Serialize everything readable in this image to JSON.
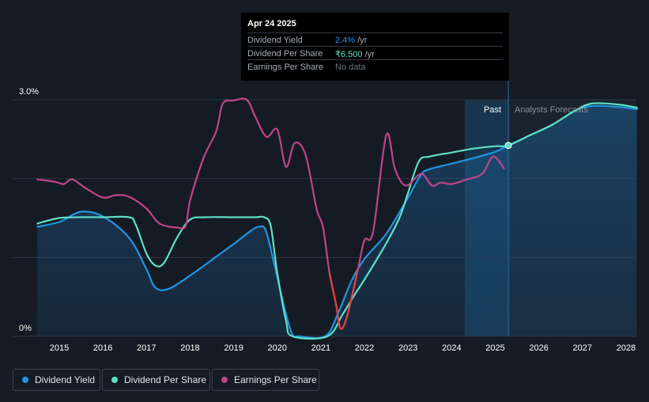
{
  "tooltip": {
    "date": "Apr 24 2025",
    "rows": [
      {
        "label": "Dividend Yield",
        "value": "2.4%",
        "unit": "/yr",
        "color": "#2394df"
      },
      {
        "label": "Dividend Per Share",
        "value": "₹6.500",
        "unit": "/yr",
        "color": "#5ce0c6"
      },
      {
        "label": "Earnings Per Share",
        "value": "No data",
        "unit": "",
        "color": "#6f7680"
      }
    ]
  },
  "labels": {
    "past": "Past",
    "forecast": "Analysts Forecasts"
  },
  "legend": [
    {
      "label": "Dividend Yield",
      "color": "#2394df"
    },
    {
      "label": "Dividend Per Share",
      "color": "#5ce0c6"
    },
    {
      "label": "Earnings Per Share",
      "color": "#c0448a"
    }
  ],
  "chart_data": {
    "type": "line",
    "title": "",
    "xlabel": "",
    "ylabel": "",
    "x_ticks": [
      "2015",
      "2016",
      "2017",
      "2018",
      "2019",
      "2020",
      "2021",
      "2022",
      "2023",
      "2024",
      "2025",
      "2026",
      "2027",
      "2028"
    ],
    "y_ticks": [
      "0%",
      "3.0%"
    ],
    "xlim": [
      2014.5,
      2028.25
    ],
    "ylim": [
      0,
      3.0
    ],
    "today": 2025.3,
    "forecast_start": 2024.3,
    "series": [
      {
        "name": "Dividend Yield",
        "color": "#2394df",
        "area": true,
        "points": [
          [
            2014.5,
            1.39
          ],
          [
            2015.0,
            1.45
          ],
          [
            2015.5,
            1.58
          ],
          [
            2016.0,
            1.52
          ],
          [
            2016.6,
            1.25
          ],
          [
            2017.0,
            0.85
          ],
          [
            2017.2,
            0.62
          ],
          [
            2017.5,
            0.6
          ],
          [
            2018.0,
            0.77
          ],
          [
            2018.6,
            1.01
          ],
          [
            2019.0,
            1.17
          ],
          [
            2019.4,
            1.34
          ],
          [
            2019.6,
            1.39
          ],
          [
            2019.75,
            1.32
          ],
          [
            2020.0,
            0.75
          ],
          [
            2020.2,
            0.28
          ],
          [
            2020.35,
            0.02
          ],
          [
            2020.5,
            0.0
          ],
          [
            2021.1,
            0.0
          ],
          [
            2021.4,
            0.3
          ],
          [
            2021.7,
            0.7
          ],
          [
            2022.0,
            0.98
          ],
          [
            2022.5,
            1.3
          ],
          [
            2023.0,
            1.76
          ],
          [
            2023.3,
            2.05
          ],
          [
            2023.5,
            2.12
          ],
          [
            2024.0,
            2.19
          ],
          [
            2024.5,
            2.26
          ],
          [
            2025.0,
            2.34
          ],
          [
            2025.3,
            2.42
          ],
          [
            2025.8,
            2.55
          ],
          [
            2026.3,
            2.68
          ],
          [
            2026.8,
            2.85
          ],
          [
            2027.2,
            2.92
          ],
          [
            2027.8,
            2.91
          ],
          [
            2028.25,
            2.88
          ]
        ]
      },
      {
        "name": "Dividend Per Share",
        "color": "#5ce0c6",
        "area": false,
        "points": [
          [
            2014.5,
            1.43
          ],
          [
            2015.0,
            1.5
          ],
          [
            2015.5,
            1.51
          ],
          [
            2016.0,
            1.51
          ],
          [
            2016.6,
            1.51
          ],
          [
            2016.75,
            1.42
          ],
          [
            2017.0,
            1.05
          ],
          [
            2017.2,
            0.9
          ],
          [
            2017.4,
            0.93
          ],
          [
            2017.7,
            1.25
          ],
          [
            2018.0,
            1.48
          ],
          [
            2018.35,
            1.51
          ],
          [
            2019.0,
            1.51
          ],
          [
            2019.5,
            1.51
          ],
          [
            2019.7,
            1.51
          ],
          [
            2019.85,
            1.4
          ],
          [
            2020.0,
            0.8
          ],
          [
            2020.2,
            0.2
          ],
          [
            2020.35,
            0.0
          ],
          [
            2021.15,
            0.0
          ],
          [
            2021.5,
            0.28
          ],
          [
            2021.8,
            0.55
          ],
          [
            2022.0,
            0.72
          ],
          [
            2022.5,
            1.18
          ],
          [
            2022.8,
            1.5
          ],
          [
            2023.0,
            1.82
          ],
          [
            2023.25,
            2.22
          ],
          [
            2023.5,
            2.28
          ],
          [
            2024.0,
            2.33
          ],
          [
            2024.5,
            2.38
          ],
          [
            2025.0,
            2.41
          ],
          [
            2025.3,
            2.42
          ],
          [
            2025.8,
            2.55
          ],
          [
            2026.3,
            2.68
          ],
          [
            2026.8,
            2.85
          ],
          [
            2027.2,
            2.95
          ],
          [
            2027.8,
            2.94
          ],
          [
            2028.25,
            2.9
          ]
        ]
      },
      {
        "name": "Earnings Per Share",
        "color": "#c0448a",
        "area": false,
        "points": [
          [
            2014.5,
            1.99
          ],
          [
            2014.9,
            1.96
          ],
          [
            2015.1,
            1.93
          ],
          [
            2015.3,
            1.99
          ],
          [
            2015.6,
            1.88
          ],
          [
            2016.0,
            1.76
          ],
          [
            2016.3,
            1.79
          ],
          [
            2016.6,
            1.77
          ],
          [
            2017.0,
            1.62
          ],
          [
            2017.3,
            1.43
          ],
          [
            2017.7,
            1.38
          ],
          [
            2017.9,
            1.4
          ],
          [
            2018.0,
            1.72
          ],
          [
            2018.3,
            2.25
          ],
          [
            2018.6,
            2.6
          ],
          [
            2018.75,
            2.95
          ],
          [
            2019.0,
            2.99
          ],
          [
            2019.3,
            3.0
          ],
          [
            2019.5,
            2.78
          ],
          [
            2019.75,
            2.53
          ],
          [
            2020.0,
            2.62
          ],
          [
            2020.2,
            2.15
          ],
          [
            2020.4,
            2.45
          ],
          [
            2020.65,
            2.3
          ],
          [
            2020.9,
            1.62
          ],
          [
            2021.05,
            1.38
          ],
          [
            2021.2,
            0.8
          ],
          [
            2021.35,
            0.4
          ],
          [
            2021.45,
            0.1
          ],
          [
            2021.6,
            0.25
          ],
          [
            2021.85,
            0.85
          ],
          [
            2022.0,
            1.22
          ],
          [
            2022.2,
            1.33
          ],
          [
            2022.5,
            2.55
          ],
          [
            2022.7,
            2.12
          ],
          [
            2022.95,
            1.91
          ],
          [
            2023.3,
            2.06
          ],
          [
            2023.55,
            1.91
          ],
          [
            2023.75,
            1.95
          ],
          [
            2024.0,
            1.93
          ],
          [
            2024.35,
            1.99
          ],
          [
            2024.7,
            2.06
          ],
          [
            2024.95,
            2.28
          ],
          [
            2025.2,
            2.13
          ]
        ]
      }
    ]
  }
}
